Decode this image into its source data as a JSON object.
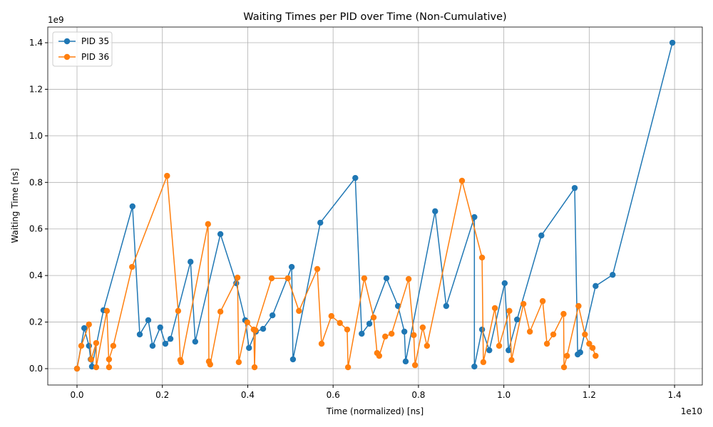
{
  "chart_data": {
    "type": "line",
    "title": "Waiting Times per PID over Time (Non-Cumulative)",
    "x_label": "Time (normalized) [ns]",
    "y_label": "Waiting Time [ns]",
    "x_offset_label": "1e10",
    "y_offset_label": "1e9",
    "xlim": [
      -0.0685,
      1.465
    ],
    "ylim": [
      -0.0703,
      1.4673
    ],
    "xticks": [
      {
        "value": 0,
        "label": "0.0"
      },
      0.2,
      0.4,
      0.6,
      0.8,
      {
        "value": 1,
        "label": "1.0"
      },
      1.2,
      1.4
    ],
    "yticks": [
      {
        "value": 0,
        "label": "0.0"
      },
      0.2,
      0.4,
      0.6,
      0.8,
      {
        "value": 1,
        "label": "1.0"
      },
      1.2,
      1.4
    ],
    "grid": true,
    "legend": "upper left",
    "series": [
      {
        "name": "PID 35",
        "color": "#1f77b4",
        "x": [
          0,
          0.017,
          0.028,
          0.032,
          0.035,
          0.062,
          0.13,
          0.147,
          0.167,
          0.177,
          0.195,
          0.207,
          0.219,
          0.266,
          0.277,
          0.336,
          0.373,
          0.394,
          0.403,
          0.419,
          0.436,
          0.458,
          0.503,
          0.506,
          0.57,
          0.652,
          0.667,
          0.685,
          0.725,
          0.752,
          0.767,
          0.77,
          0.839,
          0.865,
          0.931,
          0.931,
          0.949,
          0.966,
          1.002,
          1.011,
          1.031,
          1.088,
          1.166,
          1.173,
          1.179,
          1.215,
          1.255,
          1.395
        ],
        "values": [
          0,
          0.174,
          0.098,
          0.04,
          0.009,
          0.251,
          0.697,
          0.147,
          0.208,
          0.098,
          0.177,
          0.107,
          0.128,
          0.459,
          0.116,
          0.578,
          0.367,
          0.208,
          0.089,
          0.159,
          0.171,
          0.229,
          0.437,
          0.04,
          0.627,
          0.819,
          0.15,
          0.193,
          0.388,
          0.269,
          0.159,
          0.031,
          0.676,
          0.269,
          0.651,
          0.009,
          0.168,
          0.079,
          0.367,
          0.079,
          0.211,
          0.572,
          0.776,
          0.061,
          0.07,
          0.355,
          0.403,
          1.4
        ]
      },
      {
        "name": "PID 36",
        "color": "#ff7f0e",
        "x": [
          0,
          0.01,
          0.028,
          0.033,
          0.045,
          0.045,
          0.07,
          0.075,
          0.075,
          0.085,
          0.129,
          0.211,
          0.237,
          0.242,
          0.244,
          0.307,
          0.309,
          0.312,
          0.336,
          0.376,
          0.379,
          0.399,
          0.414,
          0.416,
          0.418,
          0.456,
          0.494,
          0.52,
          0.563,
          0.573,
          0.596,
          0.616,
          0.633,
          0.635,
          0.673,
          0.695,
          0.703,
          0.708,
          0.722,
          0.737,
          0.777,
          0.789,
          0.792,
          0.81,
          0.82,
          0.902,
          0.949,
          0.952,
          0.979,
          0.989,
          1.013,
          1.018,
          1.046,
          1.061,
          1.091,
          1.101,
          1.116,
          1.14,
          1.141,
          1.148,
          1.175,
          1.19,
          1.2,
          1.208,
          1.215
        ],
        "values": [
          0,
          0.098,
          0.19,
          0.04,
          0.11,
          0.006,
          0.248,
          0.006,
          0.04,
          0.098,
          0.437,
          0.828,
          0.248,
          0.037,
          0.028,
          0.621,
          0.031,
          0.018,
          0.245,
          0.391,
          0.028,
          0.199,
          0.168,
          0.006,
          0.165,
          0.388,
          0.388,
          0.248,
          0.428,
          0.107,
          0.226,
          0.196,
          0.168,
          0.006,
          0.388,
          0.22,
          0.067,
          0.055,
          0.138,
          0.15,
          0.385,
          0.144,
          0.015,
          0.177,
          0.098,
          0.807,
          0.477,
          0.028,
          0.26,
          0.098,
          0.248,
          0.037,
          0.278,
          0.159,
          0.29,
          0.107,
          0.147,
          0.235,
          0.006,
          0.055,
          0.269,
          0.147,
          0.107,
          0.089,
          0.055
        ]
      }
    ]
  }
}
